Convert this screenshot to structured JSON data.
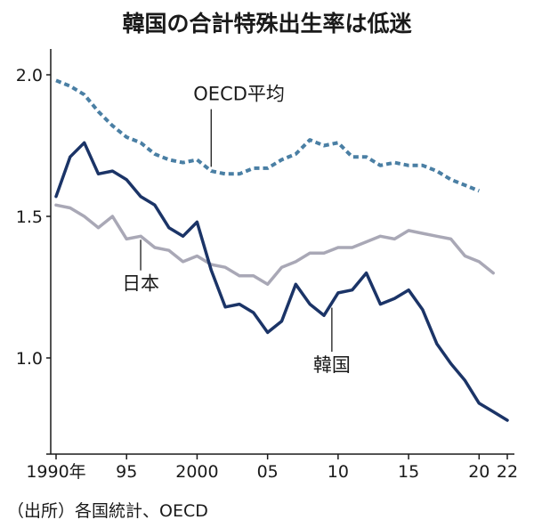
{
  "chart_data": {
    "type": "line",
    "title": "韓国の合計特殊出生率は低迷",
    "source": "（出所）各国統計、OECD",
    "xlim": [
      1990,
      2022
    ],
    "ylim": [
      0.75,
      2.1
    ],
    "y_ticks": [
      {
        "value": 1.0,
        "label": "1.0"
      },
      {
        "value": 1.5,
        "label": "1.5"
      },
      {
        "value": 2.0,
        "label": "2.0"
      }
    ],
    "x_ticks": [
      {
        "value": 1990,
        "label": "1990年"
      },
      {
        "value": 1995,
        "label": "95"
      },
      {
        "value": 2000,
        "label": "2000"
      },
      {
        "value": 2005,
        "label": "05"
      },
      {
        "value": 2010,
        "label": "10"
      },
      {
        "value": 2015,
        "label": "15"
      },
      {
        "value": 2020,
        "label": "20"
      },
      {
        "value": 2022,
        "label": "22"
      }
    ],
    "grid": false,
    "series": [
      {
        "name": "OECD平均",
        "color": "#4a7fa4",
        "style": "dashed",
        "label_year": 2001,
        "label_value": 1.91,
        "x": [
          1990,
          1991,
          1992,
          1993,
          1994,
          1995,
          1996,
          1997,
          1998,
          1999,
          2000,
          2001,
          2002,
          2003,
          2004,
          2005,
          2006,
          2007,
          2008,
          2009,
          2010,
          2011,
          2012,
          2013,
          2014,
          2015,
          2016,
          2017,
          2018,
          2019,
          2020
        ],
        "values": [
          1.98,
          1.96,
          1.93,
          1.87,
          1.82,
          1.78,
          1.76,
          1.72,
          1.7,
          1.69,
          1.7,
          1.66,
          1.65,
          1.65,
          1.67,
          1.67,
          1.7,
          1.72,
          1.77,
          1.75,
          1.76,
          1.71,
          1.71,
          1.68,
          1.69,
          1.68,
          1.68,
          1.66,
          1.63,
          1.61,
          1.59
        ]
      },
      {
        "name": "日本",
        "color": "#a9a8b6",
        "style": "solid",
        "label_year": 1996,
        "label_value": 1.24,
        "x": [
          1990,
          1991,
          1992,
          1993,
          1994,
          1995,
          1996,
          1997,
          1998,
          1999,
          2000,
          2001,
          2002,
          2003,
          2004,
          2005,
          2006,
          2007,
          2008,
          2009,
          2010,
          2011,
          2012,
          2013,
          2014,
          2015,
          2016,
          2017,
          2018,
          2019,
          2020,
          2021
        ],
        "values": [
          1.54,
          1.53,
          1.5,
          1.46,
          1.5,
          1.42,
          1.43,
          1.39,
          1.38,
          1.34,
          1.36,
          1.33,
          1.32,
          1.29,
          1.29,
          1.26,
          1.32,
          1.34,
          1.37,
          1.37,
          1.39,
          1.39,
          1.41,
          1.43,
          1.42,
          1.45,
          1.44,
          1.43,
          1.42,
          1.36,
          1.34,
          1.3
        ]
      },
      {
        "name": "韓国",
        "color": "#1b3467",
        "style": "solid",
        "label_year": 2010,
        "label_value": 1.0,
        "x": [
          1990,
          1991,
          1992,
          1993,
          1994,
          1995,
          1996,
          1997,
          1998,
          1999,
          2000,
          2001,
          2002,
          2003,
          2004,
          2005,
          2006,
          2007,
          2008,
          2009,
          2010,
          2011,
          2012,
          2013,
          2014,
          2015,
          2016,
          2017,
          2018,
          2019,
          2020,
          2021,
          2022
        ],
        "values": [
          1.57,
          1.71,
          1.76,
          1.65,
          1.66,
          1.63,
          1.57,
          1.54,
          1.46,
          1.43,
          1.48,
          1.31,
          1.18,
          1.19,
          1.16,
          1.09,
          1.13,
          1.26,
          1.19,
          1.15,
          1.23,
          1.24,
          1.3,
          1.19,
          1.21,
          1.24,
          1.17,
          1.05,
          0.98,
          0.92,
          0.84,
          0.81,
          0.78
        ]
      }
    ]
  }
}
